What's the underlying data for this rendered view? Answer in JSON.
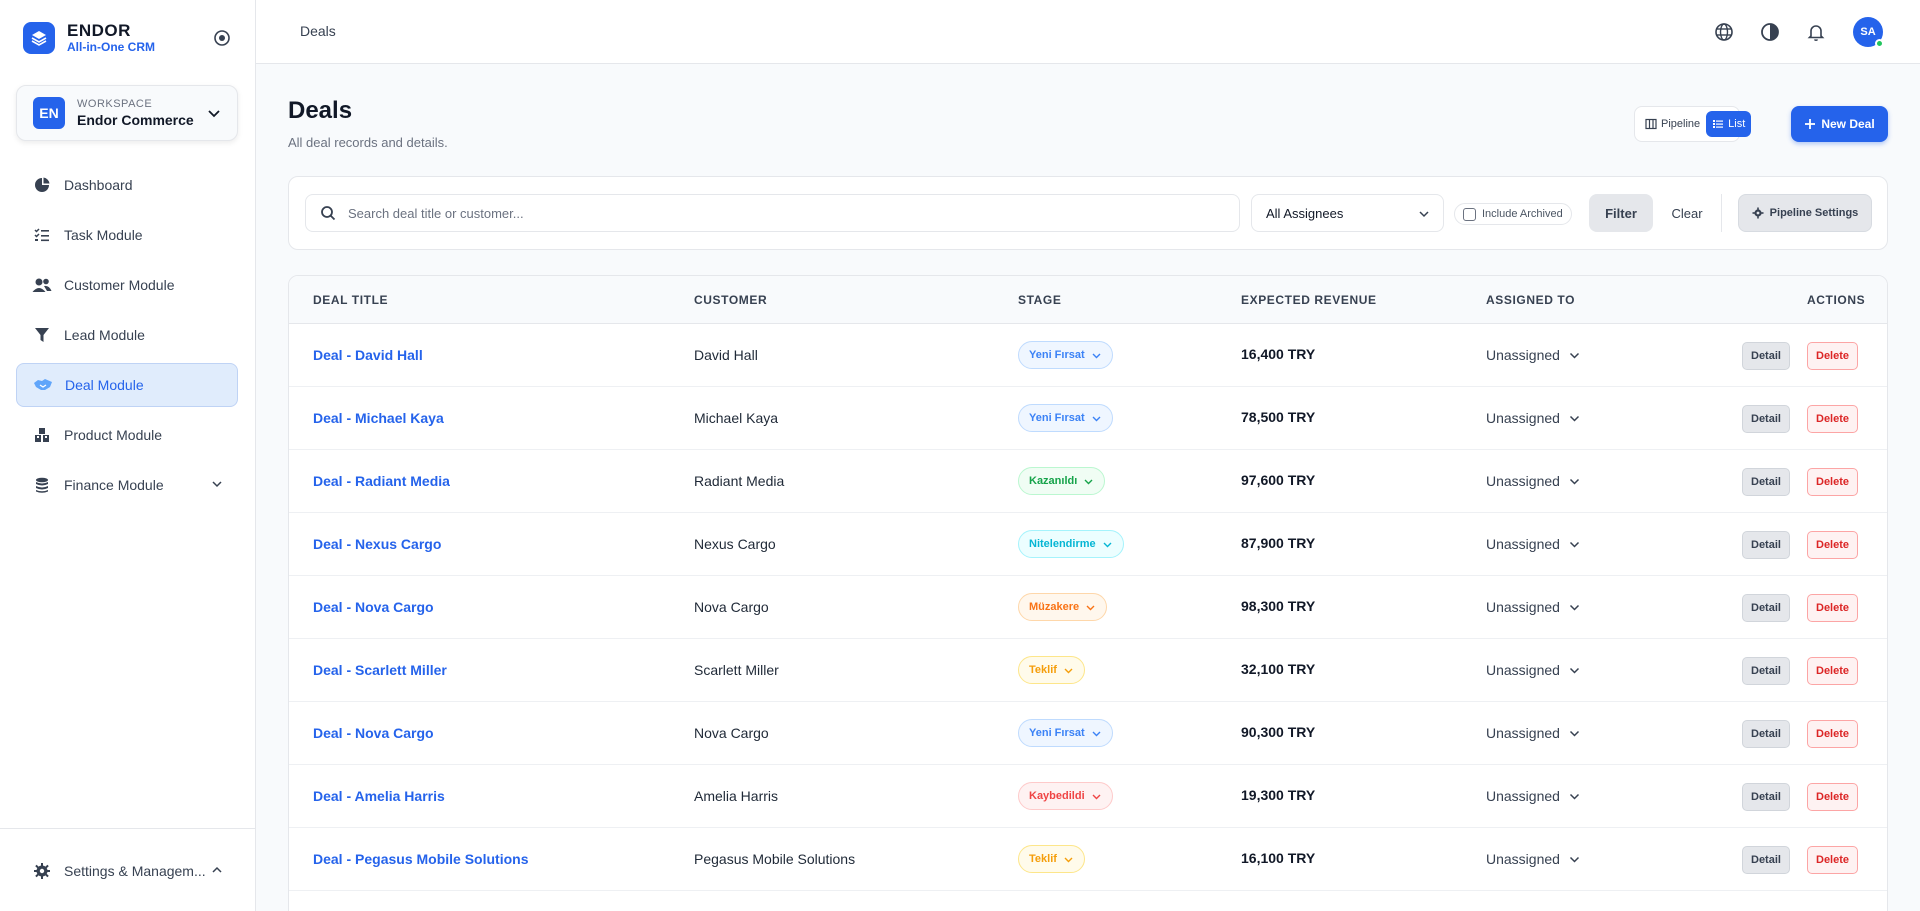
{
  "brand": {
    "name": "ENDOR",
    "subtitle": "All-in-One CRM"
  },
  "workspace": {
    "label": "WORKSPACE",
    "name": "Endor Commerce",
    "initials": "EN"
  },
  "sidebar": {
    "items": [
      {
        "label": "Dashboard",
        "icon": "pie-chart-icon"
      },
      {
        "label": "Task Module",
        "icon": "task-list-icon"
      },
      {
        "label": "Customer Module",
        "icon": "users-icon"
      },
      {
        "label": "Lead Module",
        "icon": "funnel-icon"
      },
      {
        "label": "Deal Module",
        "icon": "handshake-icon",
        "active": true
      },
      {
        "label": "Product Module",
        "icon": "boxes-icon"
      },
      {
        "label": "Finance Module",
        "icon": "coins-icon",
        "has_submenu": true
      }
    ],
    "footer": {
      "label": "Settings & Managem...",
      "icon": "gear-icon"
    }
  },
  "topbar": {
    "breadcrumb": "Deals",
    "icons": [
      "globe-icon",
      "contrast-icon",
      "bell-icon"
    ],
    "avatar_initials": "SA"
  },
  "page": {
    "title": "Deals",
    "subtitle": "All deal records and details.",
    "view_toggle": {
      "pipeline": "Pipeline",
      "list": "List",
      "active": "list"
    },
    "new_button": "New Deal"
  },
  "filters": {
    "search_placeholder": "Search deal title or customer...",
    "assignee_value": "All Assignees",
    "include_archived": "Include Archived",
    "include_archived_checked": false,
    "filter_button": "Filter",
    "clear_button": "Clear",
    "pipeline_settings": "Pipeline Settings"
  },
  "table": {
    "columns": [
      "DEAL TITLE",
      "CUSTOMER",
      "STAGE",
      "EXPECTED REVENUE",
      "ASSIGNED TO",
      "ACTIONS"
    ],
    "detail_label": "Detail",
    "delete_label": "Delete",
    "rows": [
      {
        "title": "Deal - David Hall",
        "customer": "David Hall",
        "stage": "Yeni Fırsat",
        "stage_type": "new",
        "revenue": "16,400 TRY",
        "assigned": "Unassigned"
      },
      {
        "title": "Deal - Michael Kaya",
        "customer": "Michael Kaya",
        "stage": "Yeni Fırsat",
        "stage_type": "new",
        "revenue": "78,500 TRY",
        "assigned": "Unassigned"
      },
      {
        "title": "Deal - Radiant Media",
        "customer": "Radiant Media",
        "stage": "Kazanıldı",
        "stage_type": "won",
        "revenue": "97,600 TRY",
        "assigned": "Unassigned"
      },
      {
        "title": "Deal - Nexus Cargo",
        "customer": "Nexus Cargo",
        "stage": "Nitelendirme",
        "stage_type": "qualify",
        "revenue": "87,900 TRY",
        "assigned": "Unassigned"
      },
      {
        "title": "Deal - Nova Cargo",
        "customer": "Nova Cargo",
        "stage": "Müzakere",
        "stage_type": "negotiation",
        "revenue": "98,300 TRY",
        "assigned": "Unassigned"
      },
      {
        "title": "Deal - Scarlett Miller",
        "customer": "Scarlett Miller",
        "stage": "Teklif",
        "stage_type": "proposal",
        "revenue": "32,100 TRY",
        "assigned": "Unassigned"
      },
      {
        "title": "Deal - Nova Cargo",
        "customer": "Nova Cargo",
        "stage": "Yeni Fırsat",
        "stage_type": "new",
        "revenue": "90,300 TRY",
        "assigned": "Unassigned"
      },
      {
        "title": "Deal - Amelia Harris",
        "customer": "Amelia Harris",
        "stage": "Kaybedildi",
        "stage_type": "lost",
        "revenue": "19,300 TRY",
        "assigned": "Unassigned"
      },
      {
        "title": "Deal - Pegasus Mobile Solutions",
        "customer": "Pegasus Mobile Solutions",
        "stage": "Teklif",
        "stage_type": "proposal",
        "revenue": "16,100 TRY",
        "assigned": "Unassigned"
      }
    ]
  },
  "colors": {
    "accent": "#2563eb",
    "stage_new": "#3b82f6",
    "stage_won": "#16a34a",
    "stage_qualify": "#06b6d4",
    "stage_negotiation": "#f97316",
    "stage_proposal": "#f59e0b",
    "stage_lost": "#ef4444"
  }
}
